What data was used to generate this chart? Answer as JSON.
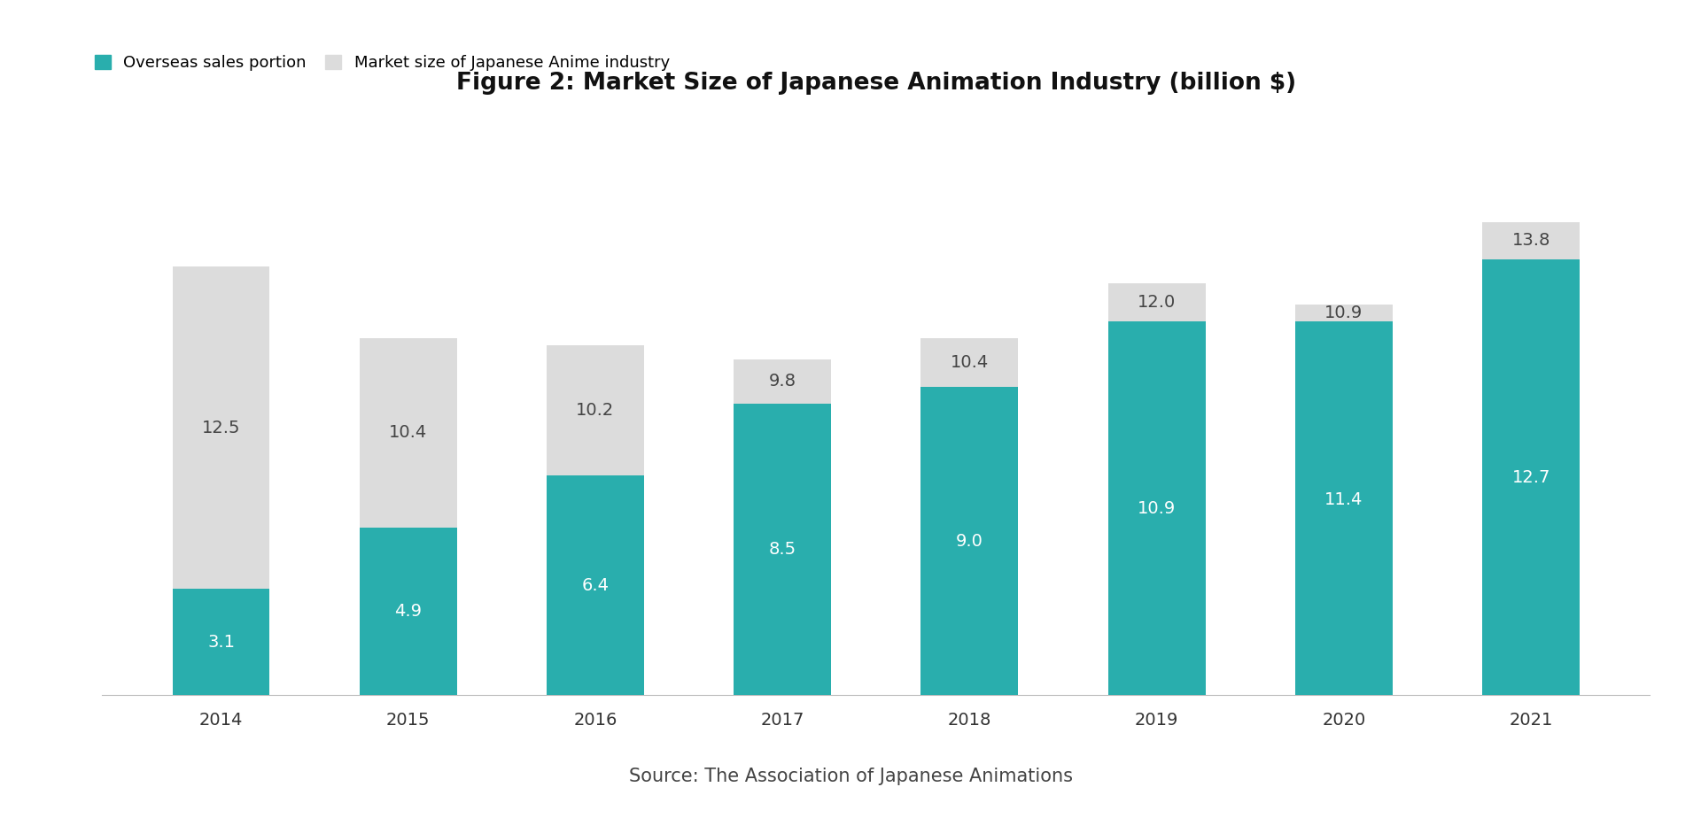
{
  "title": "Figure 2: Market Size of Japanese Animation Industry (billion $)",
  "years": [
    "2014",
    "2015",
    "2016",
    "2017",
    "2018",
    "2019",
    "2020",
    "2021"
  ],
  "overseas": [
    3.1,
    4.9,
    6.4,
    8.5,
    9.0,
    10.9,
    11.4,
    12.7
  ],
  "total": [
    12.5,
    10.4,
    10.2,
    9.8,
    10.4,
    12.0,
    10.9,
    13.8
  ],
  "color_overseas": "#29AEAD",
  "color_remaining": "#DCDCDC",
  "legend_overseas": "Overseas sales portion",
  "legend_total": "Market size of Japanese Anime industry",
  "source_text": "Source: The Association of Japanese Animations",
  "background_color": "#FFFFFF",
  "ylim": [
    0,
    15.5
  ],
  "bar_width": 0.52,
  "title_fontsize": 19,
  "label_fontsize": 14,
  "tick_fontsize": 14,
  "legend_fontsize": 13,
  "source_fontsize": 15
}
